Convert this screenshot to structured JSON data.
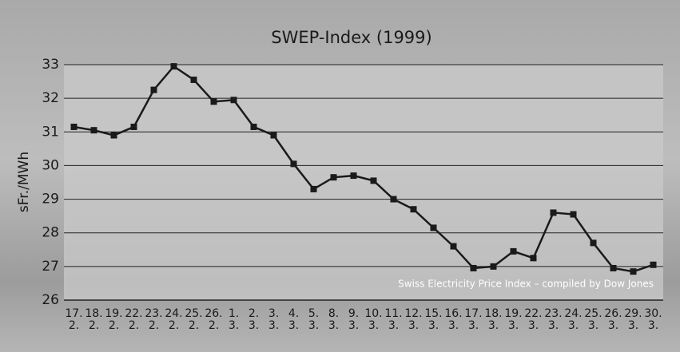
{
  "chart_data": {
    "type": "line",
    "title": "SWEP-Index (1999)",
    "y_label": "sFr./MWh",
    "annotation": "Swiss Electricity Price Index  – compiled by Dow Jones",
    "categories": [
      "17.\n2.",
      "18.\n2.",
      "19.\n2.",
      "22.\n2.",
      "23.\n2.",
      "24.\n2.",
      "25.\n2.",
      "26.\n2.",
      "1.\n3.",
      "2.\n3.",
      "3.\n3.",
      "4.\n3.",
      "5.\n3.",
      "8.\n3.",
      "9.\n3.",
      "10.\n3.",
      "11.\n3.",
      "12.\n3.",
      "15.\n3.",
      "16.\n3.",
      "17.\n3.",
      "18.\n3.",
      "19.\n3.",
      "22.\n3.",
      "23.\n3.",
      "24.\n3.",
      "25.\n3.",
      "26.\n3.",
      "29.\n3.",
      "30.\n3."
    ],
    "values": [
      31.15,
      31.05,
      30.9,
      31.15,
      32.25,
      32.95,
      32.55,
      31.9,
      31.95,
      31.15,
      30.9,
      30.05,
      29.3,
      29.65,
      29.7,
      29.55,
      29.0,
      28.7,
      28.15,
      27.6,
      26.95,
      27.0,
      27.45,
      27.25,
      28.6,
      28.55,
      27.7,
      26.95,
      26.85,
      27.05
    ],
    "color": "#1a1a1a",
    "ylim": [
      26,
      33
    ],
    "yticks": [
      26,
      27,
      28,
      29,
      30,
      31,
      32,
      33
    ],
    "grid": true
  }
}
